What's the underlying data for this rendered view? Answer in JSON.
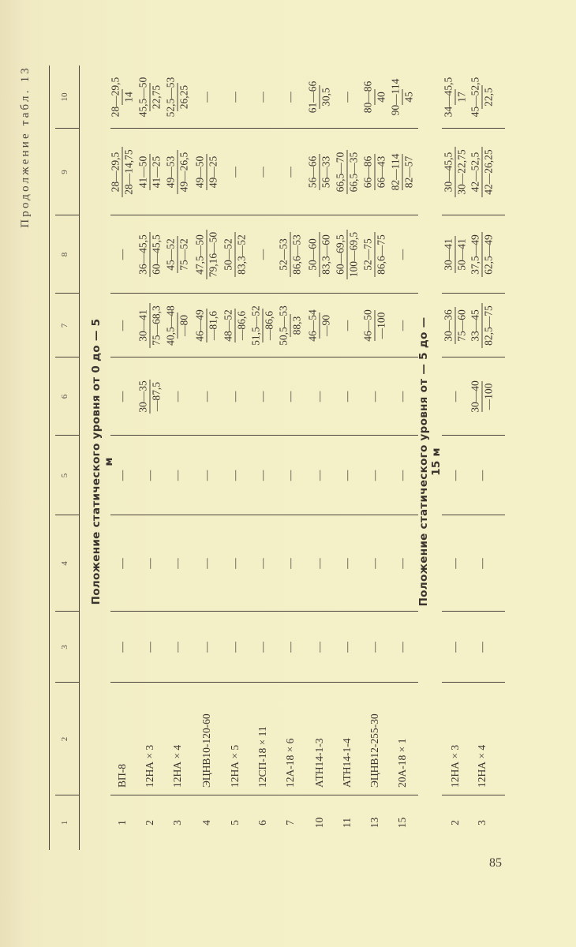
{
  "continuation_title": "Продолжение табл. 13",
  "column_headers": [
    "1",
    "2",
    "3",
    "4",
    "5",
    "6",
    "7",
    "8",
    "9",
    "10"
  ],
  "sections": [
    {
      "title": "Положение статического уровня от 0 до — 5 м",
      "rows": [
        {
          "num": "1",
          "name": "ВП-8",
          "cells": [
            "—",
            "—",
            "—",
            "—",
            "—",
            "—",
            [
              "28—29,5",
              "28—14,75"
            ],
            [
              "28—29,5",
              "14"
            ]
          ]
        },
        {
          "num": "2",
          "name": "12НА × 3",
          "cells": [
            "—",
            "—",
            "—",
            [
              "30—35",
              "—87,5"
            ],
            [
              "30—41",
              "75—68,3"
            ],
            [
              "36—45,5",
              "60—45,5"
            ],
            [
              "41—50",
              "41—25"
            ],
            [
              "45,5—50",
              "22,75"
            ]
          ]
        },
        {
          "num": "3",
          "name": "12НА × 4",
          "cells": [
            "—",
            "—",
            "—",
            "—",
            [
              "40,5—48",
              "—80"
            ],
            [
              "45—52",
              "75—52"
            ],
            [
              "49—53",
              "49—26,5"
            ],
            [
              "52,5—53",
              "26,25"
            ]
          ]
        },
        {
          "num": "4",
          "name": "ЭЦНВ10-120-60",
          "cells": [
            "—",
            "—",
            "—",
            "—",
            [
              "46—49",
              "—81,6"
            ],
            [
              "47,5—50",
              "79,16—50"
            ],
            [
              "49—50",
              "49—25"
            ],
            "—"
          ]
        },
        {
          "num": "5",
          "name": "12НА × 5",
          "cells": [
            "—",
            "—",
            "—",
            "—",
            [
              "48—52",
              "—86,6"
            ],
            [
              "50—52",
              "83,3—52"
            ],
            "—",
            "—"
          ]
        },
        {
          "num": "6",
          "name": "12СП-18 × 11",
          "cells": [
            "—",
            "—",
            "—",
            "—",
            [
              "51,5—52",
              "—86,6"
            ],
            "—",
            "—",
            "—"
          ]
        },
        {
          "num": "7",
          "name": "12А-18 × 6",
          "cells": [
            "—",
            "—",
            "—",
            "—",
            [
              "50,5—53",
              "88,3"
            ],
            [
              "52—53",
              "86,6—53"
            ],
            "—",
            "—"
          ]
        },
        {
          "num": "10",
          "name": "АТН14-1-3",
          "cells": [
            "—",
            "—",
            "—",
            "—",
            [
              "46—54",
              "—90"
            ],
            [
              "50—60",
              "83,3—60"
            ],
            [
              "56—66",
              "56—33"
            ],
            [
              "61—66",
              "30,5"
            ]
          ]
        },
        {
          "num": "11",
          "name": "АТН14-1-4",
          "cells": [
            "—",
            "—",
            "—",
            "—",
            "—",
            [
              "60—69,5",
              "100—69,5"
            ],
            [
              "66,5—70",
              "66,5—35"
            ],
            "—"
          ]
        },
        {
          "num": "13",
          "name": "ЭЦНВ12-255-30",
          "cells": [
            "—",
            "—",
            "—",
            "—",
            [
              "46—50",
              "—100"
            ],
            [
              "52—75",
              "86,6—75"
            ],
            [
              "66—86",
              "66—43"
            ],
            [
              "80—86",
              "40"
            ]
          ]
        },
        {
          "num": "15",
          "name": "20А-18 × 1",
          "cells": [
            "—",
            "—",
            "—",
            "—",
            "—",
            "—",
            [
              "82—114",
              "82—57"
            ],
            [
              "90—114",
              "45"
            ]
          ]
        }
      ]
    },
    {
      "title": "Положение статического уровня от — 5 до — 15 м",
      "rows": [
        {
          "num": "2",
          "name": "12НА × 3",
          "cells": [
            "—",
            "—",
            "—",
            "—",
            [
              "30—36",
              "75—60"
            ],
            [
              "30—41",
              "50—41"
            ],
            [
              "30—45,5",
              "30—22,75"
            ],
            [
              "34—45,5",
              "17"
            ]
          ]
        },
        {
          "num": "3",
          "name": "12НА × 4",
          "cells": [
            "—",
            "—",
            "—",
            [
              "30—40",
              "—100"
            ],
            [
              "33—45",
              "82,5—75"
            ],
            [
              "37,5—49",
              "62,5—49"
            ],
            [
              "42—52,5",
              "42—26,25"
            ],
            [
              "45—52,5",
              "22,5"
            ]
          ]
        }
      ]
    }
  ],
  "page_number": "85"
}
